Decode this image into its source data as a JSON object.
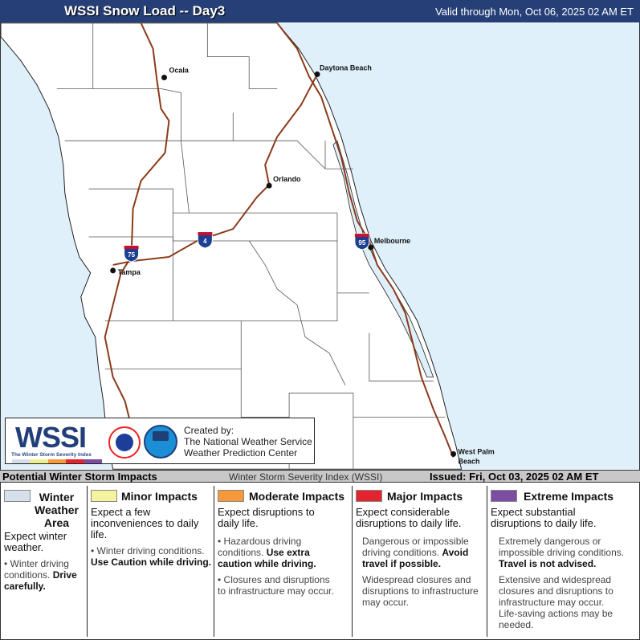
{
  "header": {
    "title": "WSSI Snow Load -- Day3",
    "valid": "Valid through Mon, Oct 06, 2025 02 AM ET"
  },
  "map": {
    "cities": [
      {
        "name": "Ocala"
      },
      {
        "name": "Daytona Beach"
      },
      {
        "name": "Orlando"
      },
      {
        "name": "Melbourne"
      },
      {
        "name": "Tampa"
      },
      {
        "name": "West Palm Beach",
        "line1": "West Palm",
        "line2": "Beach"
      }
    ],
    "interstates": [
      "75",
      "4",
      "95"
    ],
    "colors": {
      "water": "#dff0fb",
      "road": "#8b3a1a",
      "county": "#555555"
    }
  },
  "logo": {
    "wssi": "WSSI",
    "subtitle": "The Winter Storm Severity Index",
    "created": [
      "Created by:",
      "The National Weather Service",
      "Weather Prediction Center"
    ],
    "bar_colors": [
      "#d9dcea",
      "#eef08a",
      "#f7983a",
      "#e3232d",
      "#7b4ea3"
    ]
  },
  "legend_bar": {
    "left": "Potential Winter Storm Impacts",
    "center": "Winter Storm Severity Index (WSSI)",
    "right": "Issued: Fri, Oct 03, 2025 02 AM ET"
  },
  "legend": [
    {
      "title": "Winter Weather Area",
      "t1": "Winter",
      "t2": "Weather",
      "t3": "Area",
      "color": "#d6e0ea",
      "desc": "Expect winter weather.",
      "b1": "Winter driving conditions.",
      "b1b": "Drive carefully."
    },
    {
      "title": "Minor Impacts",
      "color": "#f6f39f",
      "desc": "Expect a few inconveniences to daily life.",
      "b1": "Winter driving conditions.",
      "b1b": "Use Caution while driving."
    },
    {
      "title": "Moderate Impacts",
      "color": "#f7983a",
      "desc": "Expect disruptions to daily life.",
      "b1": "Hazardous driving conditions.",
      "b1b": "Use extra caution while driving.",
      "b2": "Closures and disruptions to infrastructure may occur."
    },
    {
      "title": "Major Impacts",
      "color": "#e3232d",
      "desc": "Expect considerable disruptions to daily life.",
      "b1": "Dangerous or impossible driving conditions.",
      "b1b": "Avoid travel if possible.",
      "b2": "Widespread closures and disruptions to infrastructure may occur."
    },
    {
      "title": "Extreme Impacts",
      "color": "#7b4ea3",
      "desc": "Expect substantial disruptions to daily life.",
      "b1": "Extremely dangerous or impossible driving conditions.",
      "b1b": "Travel is not advised.",
      "b2": "Extensive and widespread closures and disruptions to infrastructure may occur.",
      "b3": "Life-saving actions may be needed."
    }
  ]
}
